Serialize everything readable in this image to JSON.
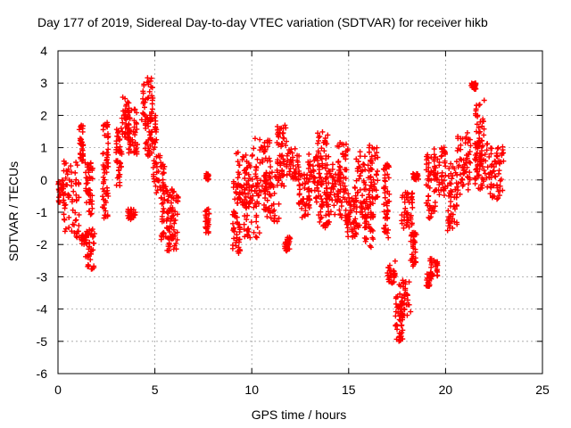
{
  "chart_data": {
    "type": "scatter",
    "title": "Day 177 of 2019, Sidereal Day-to-day VTEC variation (SDTVAR) for receiver hikb",
    "xlabel": "GPS time / hours",
    "ylabel": "SDTVAR / TECUs",
    "xlim": [
      0,
      25
    ],
    "ylim": [
      -6,
      4
    ],
    "grid": true,
    "marker": "+",
    "color": "#ff0000",
    "x_ticks": [
      0,
      5,
      10,
      15,
      20,
      25
    ],
    "y_ticks": [
      -6,
      -5,
      -4,
      -3,
      -2,
      -1,
      0,
      1,
      2,
      3,
      4
    ],
    "series": [
      {
        "name": "SDTVAR",
        "clusters": [
          {
            "x": [
              0.0,
              0.3
            ],
            "y": [
              -0.7,
              0.0
            ]
          },
          {
            "x": [
              0.3,
              1.1
            ],
            "y": [
              -1.8,
              0.6
            ]
          },
          {
            "x": [
              1.1,
              1.3
            ],
            "y": [
              0.5,
              1.7
            ]
          },
          {
            "x": [
              1.2,
              1.5
            ],
            "y": [
              -2.0,
              -1.7
            ]
          },
          {
            "x": [
              1.4,
              1.9
            ],
            "y": [
              -2.8,
              -1.5
            ]
          },
          {
            "x": [
              1.4,
              1.8
            ],
            "y": [
              -1.1,
              0.6
            ]
          },
          {
            "x": [
              2.3,
              2.6
            ],
            "y": [
              -1.2,
              1.8
            ]
          },
          {
            "x": [
              3.0,
              3.3
            ],
            "y": [
              -0.2,
              1.6
            ]
          },
          {
            "x": [
              3.3,
              3.7
            ],
            "y": [
              1.2,
              2.6
            ]
          },
          {
            "x": [
              3.6,
              4.0
            ],
            "y": [
              -1.3,
              -0.9
            ]
          },
          {
            "x": [
              3.6,
              4.1
            ],
            "y": [
              0.8,
              2.3
            ]
          },
          {
            "x": [
              4.3,
              4.9
            ],
            "y": [
              1.6,
              3.2
            ]
          },
          {
            "x": [
              4.5,
              5.1
            ],
            "y": [
              0.7,
              2.0
            ]
          },
          {
            "x": [
              4.9,
              5.5
            ],
            "y": [
              -0.4,
              0.8
            ]
          },
          {
            "x": [
              5.3,
              5.9
            ],
            "y": [
              -2.0,
              -0.2
            ]
          },
          {
            "x": [
              5.6,
              6.2
            ],
            "y": [
              -2.3,
              -0.3
            ]
          },
          {
            "x": [
              7.6,
              7.8
            ],
            "y": [
              -1.7,
              -0.9
            ]
          },
          {
            "x": [
              7.6,
              7.8
            ],
            "y": [
              0.0,
              0.2
            ]
          },
          {
            "x": [
              9.0,
              9.4
            ],
            "y": [
              -2.3,
              0.0
            ]
          },
          {
            "x": [
              9.2,
              10.0
            ],
            "y": [
              -0.8,
              0.9
            ]
          },
          {
            "x": [
              9.6,
              10.4
            ],
            "y": [
              -1.8,
              -0.2
            ]
          },
          {
            "x": [
              10.0,
              11.0
            ],
            "y": [
              -0.5,
              1.3
            ]
          },
          {
            "x": [
              10.6,
              11.4
            ],
            "y": [
              -1.3,
              0.3
            ]
          },
          {
            "x": [
              11.3,
              11.8
            ],
            "y": [
              -0.2,
              1.7
            ]
          },
          {
            "x": [
              11.7,
              12.0
            ],
            "y": [
              -2.2,
              -1.7
            ]
          },
          {
            "x": [
              11.8,
              12.5
            ],
            "y": [
              0.0,
              1.0
            ]
          },
          {
            "x": [
              12.4,
              13.0
            ],
            "y": [
              -1.2,
              0.2
            ]
          },
          {
            "x": [
              12.9,
              13.6
            ],
            "y": [
              -0.7,
              0.8
            ]
          },
          {
            "x": [
              13.4,
              14.0
            ],
            "y": [
              -1.5,
              1.6
            ]
          },
          {
            "x": [
              13.8,
              14.6
            ],
            "y": [
              -1.1,
              0.5
            ]
          },
          {
            "x": [
              14.4,
              15.0
            ],
            "y": [
              -1.4,
              1.2
            ]
          },
          {
            "x": [
              14.9,
              15.4
            ],
            "y": [
              -1.8,
              -0.5
            ]
          },
          {
            "x": [
              15.3,
              15.9
            ],
            "y": [
              -1.5,
              0.9
            ]
          },
          {
            "x": [
              15.8,
              16.3
            ],
            "y": [
              -2.1,
              -0.5
            ]
          },
          {
            "x": [
              16.0,
              16.5
            ],
            "y": [
              -0.6,
              1.1
            ]
          },
          {
            "x": [
              16.8,
              17.1
            ],
            "y": [
              -1.8,
              0.5
            ]
          },
          {
            "x": [
              17.0,
              17.4
            ],
            "y": [
              -3.2,
              -2.5
            ]
          },
          {
            "x": [
              17.4,
              17.8
            ],
            "y": [
              -5.0,
              -3.6
            ]
          },
          {
            "x": [
              17.6,
              18.2
            ],
            "y": [
              -4.2,
              -3.1
            ]
          },
          {
            "x": [
              17.7,
              18.3
            ],
            "y": [
              -1.6,
              -0.3
            ]
          },
          {
            "x": [
              18.2,
              18.5
            ],
            "y": [
              -2.8,
              -1.6
            ]
          },
          {
            "x": [
              18.3,
              18.6
            ],
            "y": [
              0.0,
              0.2
            ]
          },
          {
            "x": [
              19.0,
              19.3
            ],
            "y": [
              -3.3,
              -2.9
            ]
          },
          {
            "x": [
              19.2,
              19.6
            ],
            "y": [
              -3.0,
              -2.4
            ]
          },
          {
            "x": [
              19.0,
              19.5
            ],
            "y": [
              -1.2,
              0.8
            ]
          },
          {
            "x": [
              19.4,
              20.0
            ],
            "y": [
              -0.5,
              1.1
            ]
          },
          {
            "x": [
              20.1,
              20.6
            ],
            "y": [
              -1.6,
              0.6
            ]
          },
          {
            "x": [
              20.6,
              21.3
            ],
            "y": [
              -0.5,
              1.5
            ]
          },
          {
            "x": [
              21.3,
              21.6
            ],
            "y": [
              2.8,
              3.0
            ]
          },
          {
            "x": [
              21.5,
              22.0
            ],
            "y": [
              0.5,
              2.5
            ]
          },
          {
            "x": [
              21.5,
              22.5
            ],
            "y": [
              -0.3,
              1.2
            ]
          },
          {
            "x": [
              22.3,
              23.0
            ],
            "y": [
              -0.6,
              1.1
            ]
          }
        ]
      }
    ]
  }
}
